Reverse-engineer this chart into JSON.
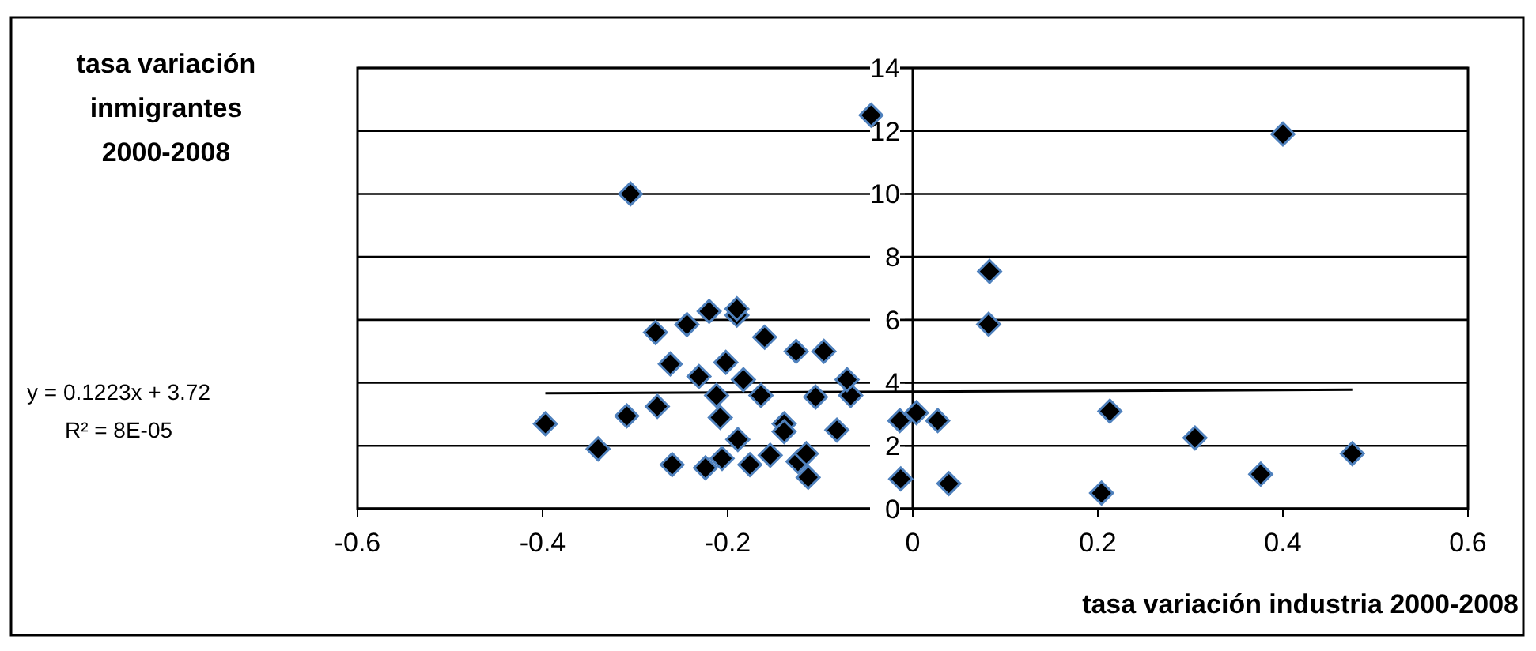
{
  "chart_data": {
    "type": "scatter",
    "xlabel": "tasa variación industria 2000-2008",
    "ylabel": "tasa variación inmigrantes 2000-2008",
    "xlim": [
      -0.6,
      0.6
    ],
    "xticks": [
      -0.6,
      -0.4,
      -0.2,
      0,
      0.2,
      0.4,
      0.6
    ],
    "ylim": [
      0,
      14
    ],
    "yticks": [
      0,
      2,
      4,
      6,
      8,
      10,
      12,
      14
    ],
    "grid": "y",
    "marker": "diamond",
    "annotations": [
      "y = 0.1223x + 3.72",
      "R² = 8E-05"
    ],
    "series": [
      {
        "color": "#000000",
        "x": [
          -0.397,
          -0.34,
          -0.309,
          -0.276,
          -0.26,
          -0.224,
          -0.208,
          -0.212,
          -0.206,
          -0.189,
          -0.176,
          -0.154,
          -0.164,
          -0.139,
          -0.139,
          -0.124,
          -0.115,
          -0.113,
          -0.105,
          -0.082,
          -0.067,
          -0.071,
          -0.014,
          0.004,
          0.027,
          -0.013,
          0.039,
          0.204,
          0.213,
          0.305,
          0.376,
          0.475,
          -0.045,
          -0.305,
          -0.278,
          -0.244,
          -0.22,
          -0.19,
          -0.19,
          -0.16,
          -0.126,
          -0.096,
          -0.262,
          -0.202,
          -0.231,
          -0.183,
          0.4,
          0.083,
          0.082
        ],
        "values": [
          2.7,
          1.9,
          2.95,
          3.25,
          1.4,
          1.3,
          2.9,
          3.6,
          1.6,
          2.2,
          1.4,
          1.7,
          3.6,
          2.7,
          2.45,
          1.5,
          1.75,
          1.0,
          3.55,
          2.5,
          3.6,
          4.1,
          2.8,
          3.05,
          2.8,
          0.95,
          0.8,
          0.5,
          3.1,
          2.25,
          1.1,
          1.75,
          12.5,
          10,
          5.6,
          5.85,
          6.27,
          6.15,
          6.35,
          5.45,
          5.0,
          5.0,
          4.6,
          4.65,
          4.2,
          4.1,
          11.9,
          7.54,
          5.86
        ]
      },
      {
        "type": "line",
        "marker": "none",
        "color": "#000000",
        "x": [
          -0.397,
          0.475
        ],
        "values": [
          3.67,
          3.78
        ]
      }
    ]
  }
}
